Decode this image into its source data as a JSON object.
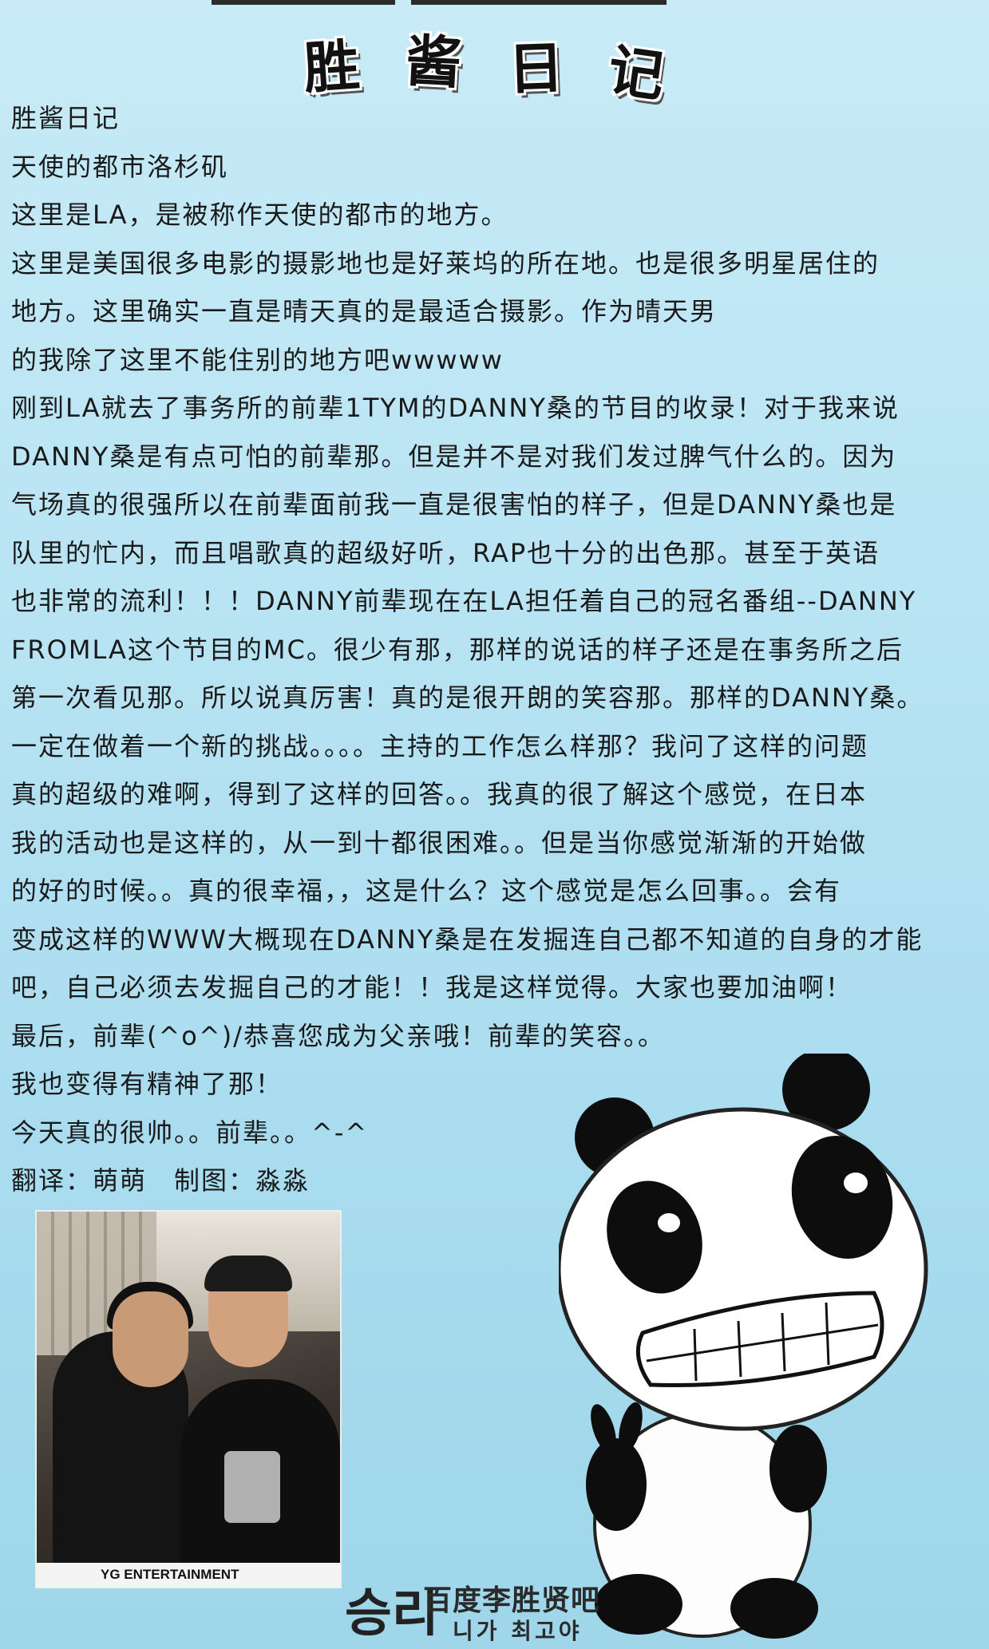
{
  "title_chars": [
    "胜",
    "酱",
    "日",
    "记"
  ],
  "lines": [
    "胜酱日记",
    "天使的都市洛杉矶",
    "这里是LA，是被称作天使的都市的地方。",
    "这里是美国很多电影的摄影地也是好莱坞的所在地。也是很多明星居住的",
    "地方。这里确实一直是晴天真的是最适合摄影。作为晴天男",
    "的我除了这里不能住别的地方吧wwwww",
    "刚到LA就去了事务所的前辈1TYM的DANNY桑的节目的收录！对于我来说",
    "DANNY桑是有点可怕的前辈那。但是并不是对我们发过脾气什么的。因为",
    "气场真的很强所以在前辈面前我一直是很害怕的样子，但是DANNY桑也是",
    "队里的忙内，而且唱歌真的超级好听，RAP也十分的出色那。甚至于英语",
    "也非常的流利！！！DANNY前辈现在在LA担任着自己的冠名番组--DANNY",
    "FROMLA这个节目的MC。很少有那，那样的说话的样子还是在事务所之后",
    "第一次看见那。所以说真厉害！真的是很开朗的笑容那。那样的DANNY桑。",
    "一定在做着一个新的挑战。。。。主持的工作怎么样那？我问了这样的问题",
    "真的超级的难啊，得到了这样的回答。。我真的很了解这个感觉，在日本",
    "我的活动也是这样的，从一到十都很困难。。但是当你感觉渐渐的开始做",
    "的好的时候。。真的很幸福，，这是什么？这个感觉是怎么回事。。会有",
    "变成这样的WWW大概现在DANNY桑是在发掘连自己都不知道的自身的才能",
    "吧，自己必须去发掘自己的才能！！我是这样觉得。大家也要加油啊！",
    "最后，前辈(^o^)/恭喜您成为父亲哦！前辈的笑容。。",
    "我也变得有精神了那！",
    "今天真的很帅。。前辈。。^-^",
    "翻译：萌萌　制图：淼淼"
  ],
  "photo_caption": "YG ENTERTAINMENT",
  "footer": {
    "mark": "승리",
    "cn": "百度李胜贤吧",
    "kr": "니가 최고야"
  }
}
